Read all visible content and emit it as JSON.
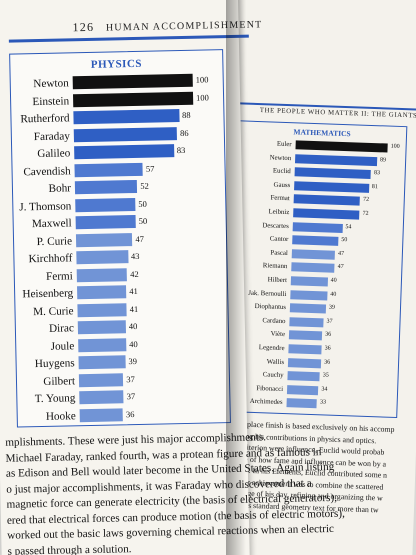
{
  "left_page": {
    "page_number": "126",
    "running_head": "HUMAN ACCOMPLISHMENT",
    "chart_title": "PHYSICS",
    "chart_data": {
      "type": "bar",
      "title": "PHYSICS",
      "categories": [
        "Newton",
        "Einstein",
        "Rutherford",
        "Faraday",
        "Galileo",
        "Cavendish",
        "Bohr",
        "J. Thomson",
        "Maxwell",
        "P. Curie",
        "Kirchhoff",
        "Fermi",
        "Heisenberg",
        "M. Curie",
        "Dirac",
        "Joule",
        "Huygens",
        "Gilbert",
        "T. Young",
        "Hooke"
      ],
      "values": [
        100,
        100,
        88,
        86,
        83,
        57,
        52,
        50,
        50,
        47,
        43,
        42,
        41,
        41,
        40,
        40,
        39,
        37,
        37,
        36
      ],
      "colors": [
        "#111111",
        "#111111",
        "#2f5fc4",
        "#2f5fc4",
        "#2f5fc4",
        "#4f79d0",
        "#4f79d0",
        "#4f79d0",
        "#4f79d0",
        "#7194d6",
        "#7194d6",
        "#7194d6",
        "#7194d6",
        "#7194d6",
        "#7194d6",
        "#7194d6",
        "#7194d6",
        "#7194d6",
        "#7194d6",
        "#7194d6"
      ]
    },
    "body_lines": [
      "mplishments. These were just his major accomplishments.",
      "Michael Faraday, ranked fourth, was a protean figure and as famous in",
      "as Edison and Bell would later become in the United States. Again listing",
      "o just major accomplishments, it was Faraday who discovered that a",
      "magnetic force can generate electricity (the basis of electrical generators),",
      "ered that electrical forces can produce motion (the basis of electric motors),",
      "worked out the basic laws governing chemical reactions when an electric",
      "s passed through a solution."
    ]
  },
  "right_page": {
    "running_head": "THE PEOPLE WHO MATTER II: THE GIANTS",
    "chart_title": "MATHEMATICS",
    "chart_data": {
      "type": "bar",
      "title": "MATHEMATICS",
      "categories": [
        "Euler",
        "Newton",
        "Euclid",
        "Gauss",
        "Fermat",
        "Leibniz",
        "Descartes",
        "Cantor",
        "Pascal",
        "Riemann",
        "Hilbert",
        "Jak. Bernoulli",
        "Diophantus",
        "Cardano",
        "Viète",
        "Legendre",
        "Wallis",
        "Cauchy",
        "Fibonacci",
        "Archimedes"
      ],
      "values": [
        100,
        89,
        83,
        81,
        72,
        72,
        54,
        50,
        47,
        47,
        40,
        40,
        39,
        37,
        36,
        36,
        36,
        35,
        34,
        33
      ],
      "colors": [
        "#111111",
        "#2f5fc4",
        "#2f5fc4",
        "#2f5fc4",
        "#2f5fc4",
        "#2f5fc4",
        "#4f79d0",
        "#4f79d0",
        "#7194d6",
        "#7194d6",
        "#7194d6",
        "#7194d6",
        "#7194d6",
        "#7194d6",
        "#7194d6",
        "#7194d6",
        "#7194d6",
        "#7194d6",
        "#7194d6",
        "#7194d6"
      ]
    },
    "body_lines": [
      "second-place finish is based exclusively on his accomp",
      "excluding his contributions in physics and optics.",
      "If the criterion were influence, Euclid would probab",
      "example of how fame and influence can be won by a",
      "of others. In his Elements, Euclid contributed some n",
      "his major achievement was to combine the scattered",
      "knowledge of his day, refining and organizing the w",
      "the West's standard geometry text for more than tw"
    ]
  }
}
